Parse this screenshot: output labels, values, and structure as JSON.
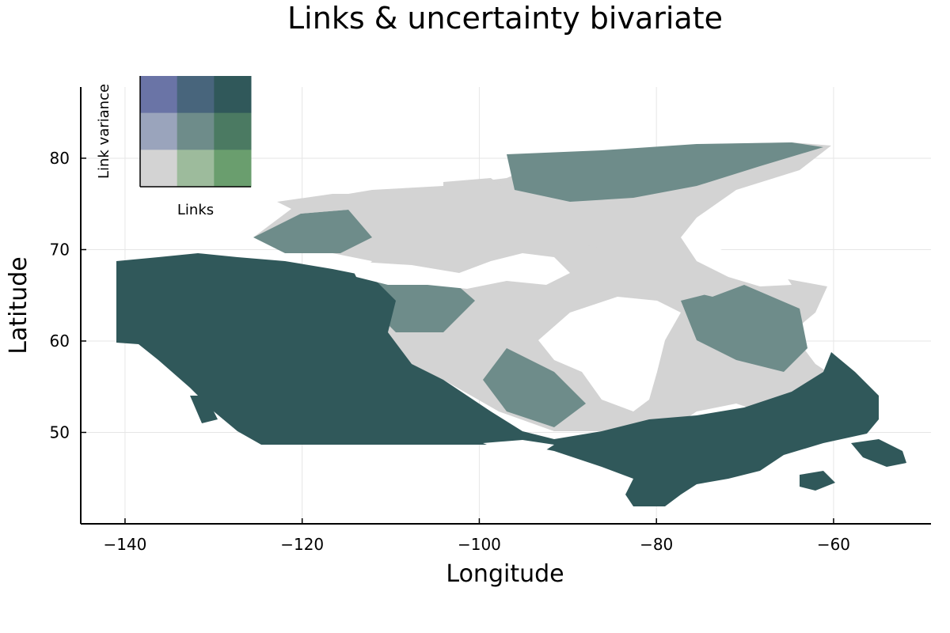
{
  "chart_data": {
    "type": "map",
    "title": "Links & uncertainty bivariate",
    "xlabel": "Longitude",
    "ylabel": "Latitude",
    "xlim": [
      -145,
      -49
    ],
    "ylim": [
      40,
      89
    ],
    "x_ticks": [
      -140,
      -120,
      -100,
      -80,
      -60
    ],
    "x_tick_labels": [
      "−140",
      "−120",
      "−100",
      "−80",
      "−60"
    ],
    "y_ticks": [
      50,
      60,
      70,
      80
    ],
    "y_tick_labels": [
      "50",
      "60",
      "70",
      "80"
    ],
    "grid": true,
    "legend": {
      "xlabel": "Links",
      "ylabel": "Link variance",
      "placement": "top-left",
      "grid_colors": [
        [
          "#6a74a6",
          "#48657c",
          "#30585a"
        ],
        [
          "#9aa4bc",
          "#6e8c8a",
          "#4b7a62"
        ],
        [
          "#d3d3d3",
          "#9dbb9c",
          "#6a9e6e"
        ]
      ]
    },
    "region_colors": {
      "high_links_low_variance": "#30585a",
      "mid": "#6e8c8a",
      "low": "#d3d3d3",
      "water": "#ffffff"
    }
  }
}
